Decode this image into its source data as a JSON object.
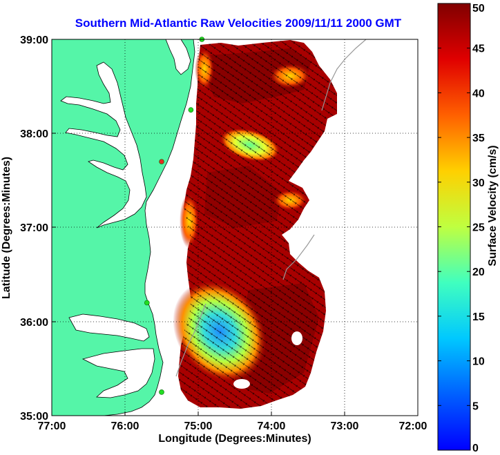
{
  "title": "Southern Mid-Atlantic Raw Velocities 2009/11/11 2000 GMT",
  "xlabel": "Longitude (Degrees:Minutes)",
  "ylabel": "Latitude (Degrees:Minutes)",
  "x_ticks": [
    "77:00",
    "76:00",
    "75:00",
    "74:00",
    "73:00",
    "72:00"
  ],
  "y_ticks": [
    "35:00",
    "36:00",
    "37:00",
    "38:00",
    "39:00"
  ],
  "colorbar": {
    "label": "Surface Velocity (cm/s)",
    "ticks": [
      "0",
      "5",
      "10",
      "15",
      "20",
      "25",
      "30",
      "35",
      "40",
      "45",
      "50"
    ],
    "min": 0,
    "max": 50
  },
  "colors": {
    "land": "#55f5a8",
    "title": "#0000ff",
    "station": "#22dd22"
  },
  "map": {
    "lon_range": [
      -77,
      -72
    ],
    "lat_range": [
      35,
      39
    ],
    "stations": [
      {
        "lon": -74.95,
        "lat": 39.0
      },
      {
        "lon": -75.1,
        "lat": 38.25
      },
      {
        "lon": -75.5,
        "lat": 37.7
      },
      {
        "lon": -75.7,
        "lat": 36.2
      },
      {
        "lon": -75.5,
        "lat": 35.25
      }
    ]
  },
  "chart_data": {
    "type": "heatmap",
    "title": "Southern Mid-Atlantic Raw Velocities 2009/11/11 2000 GMT",
    "xlabel": "Longitude (Degrees:Minutes)",
    "ylabel": "Latitude (Degrees:Minutes)",
    "xlim": [
      -77,
      -72
    ],
    "ylim": [
      35,
      39
    ],
    "colorbar_range": [
      0,
      50
    ],
    "grid": true
  }
}
